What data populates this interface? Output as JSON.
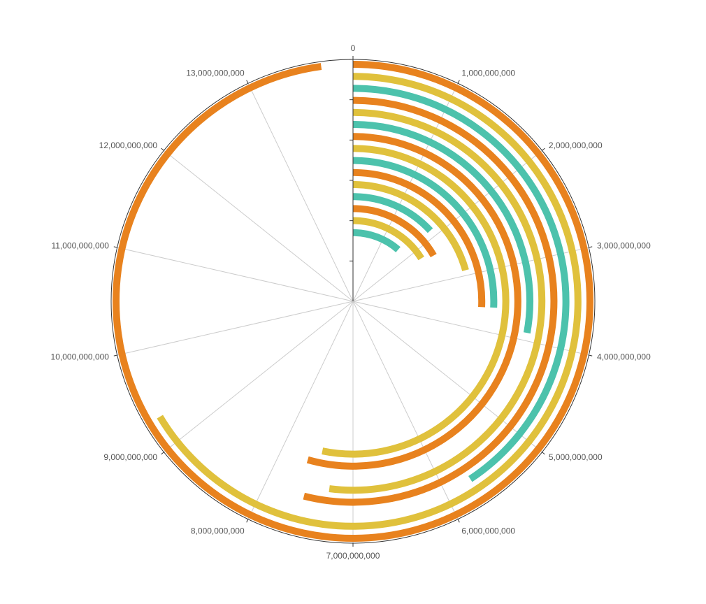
{
  "chart_data": {
    "type": "radial-bar",
    "angle_axis": {
      "min": 0,
      "max": 14000000000,
      "tick_step": 1000000000,
      "ticks": [
        "0",
        "1,000,000,000",
        "2,000,000,000",
        "3,000,000,000",
        "4,000,000,000",
        "5,000,000,000",
        "6,000,000,000",
        "7,000,000,000",
        "8,000,000,000",
        "9,000,000,000",
        "10,000,000,000",
        "11,000,000,000",
        "12,000,000,000",
        "13,000,000,000"
      ]
    },
    "radius_axis": {
      "tick_count": 6,
      "tick_labels_visible": false
    },
    "grid": true,
    "legend": "none",
    "colors": [
      "#e8821e",
      "#e0c13c",
      "#4cc2ac"
    ],
    "bars": [
      {
        "value": 13700000000,
        "color_index": 0
      },
      {
        "value": 9300000000,
        "color_index": 1
      },
      {
        "value": 5700000000,
        "color_index": 2
      },
      {
        "value": 7550000000,
        "color_index": 0
      },
      {
        "value": 7280000000,
        "color_index": 1
      },
      {
        "value": 3900000000,
        "color_index": 2
      },
      {
        "value": 7620000000,
        "color_index": 0
      },
      {
        "value": 7450000000,
        "color_index": 1
      },
      {
        "value": 3600000000,
        "color_index": 2
      },
      {
        "value": 3600000000,
        "color_index": 0
      },
      {
        "value": 2900000000,
        "color_index": 1
      },
      {
        "value": 1850000000,
        "color_index": 2
      },
      {
        "value": 2350000000,
        "color_index": 0
      },
      {
        "value": 2250000000,
        "color_index": 1
      },
      {
        "value": 1600000000,
        "color_index": 2
      }
    ]
  }
}
